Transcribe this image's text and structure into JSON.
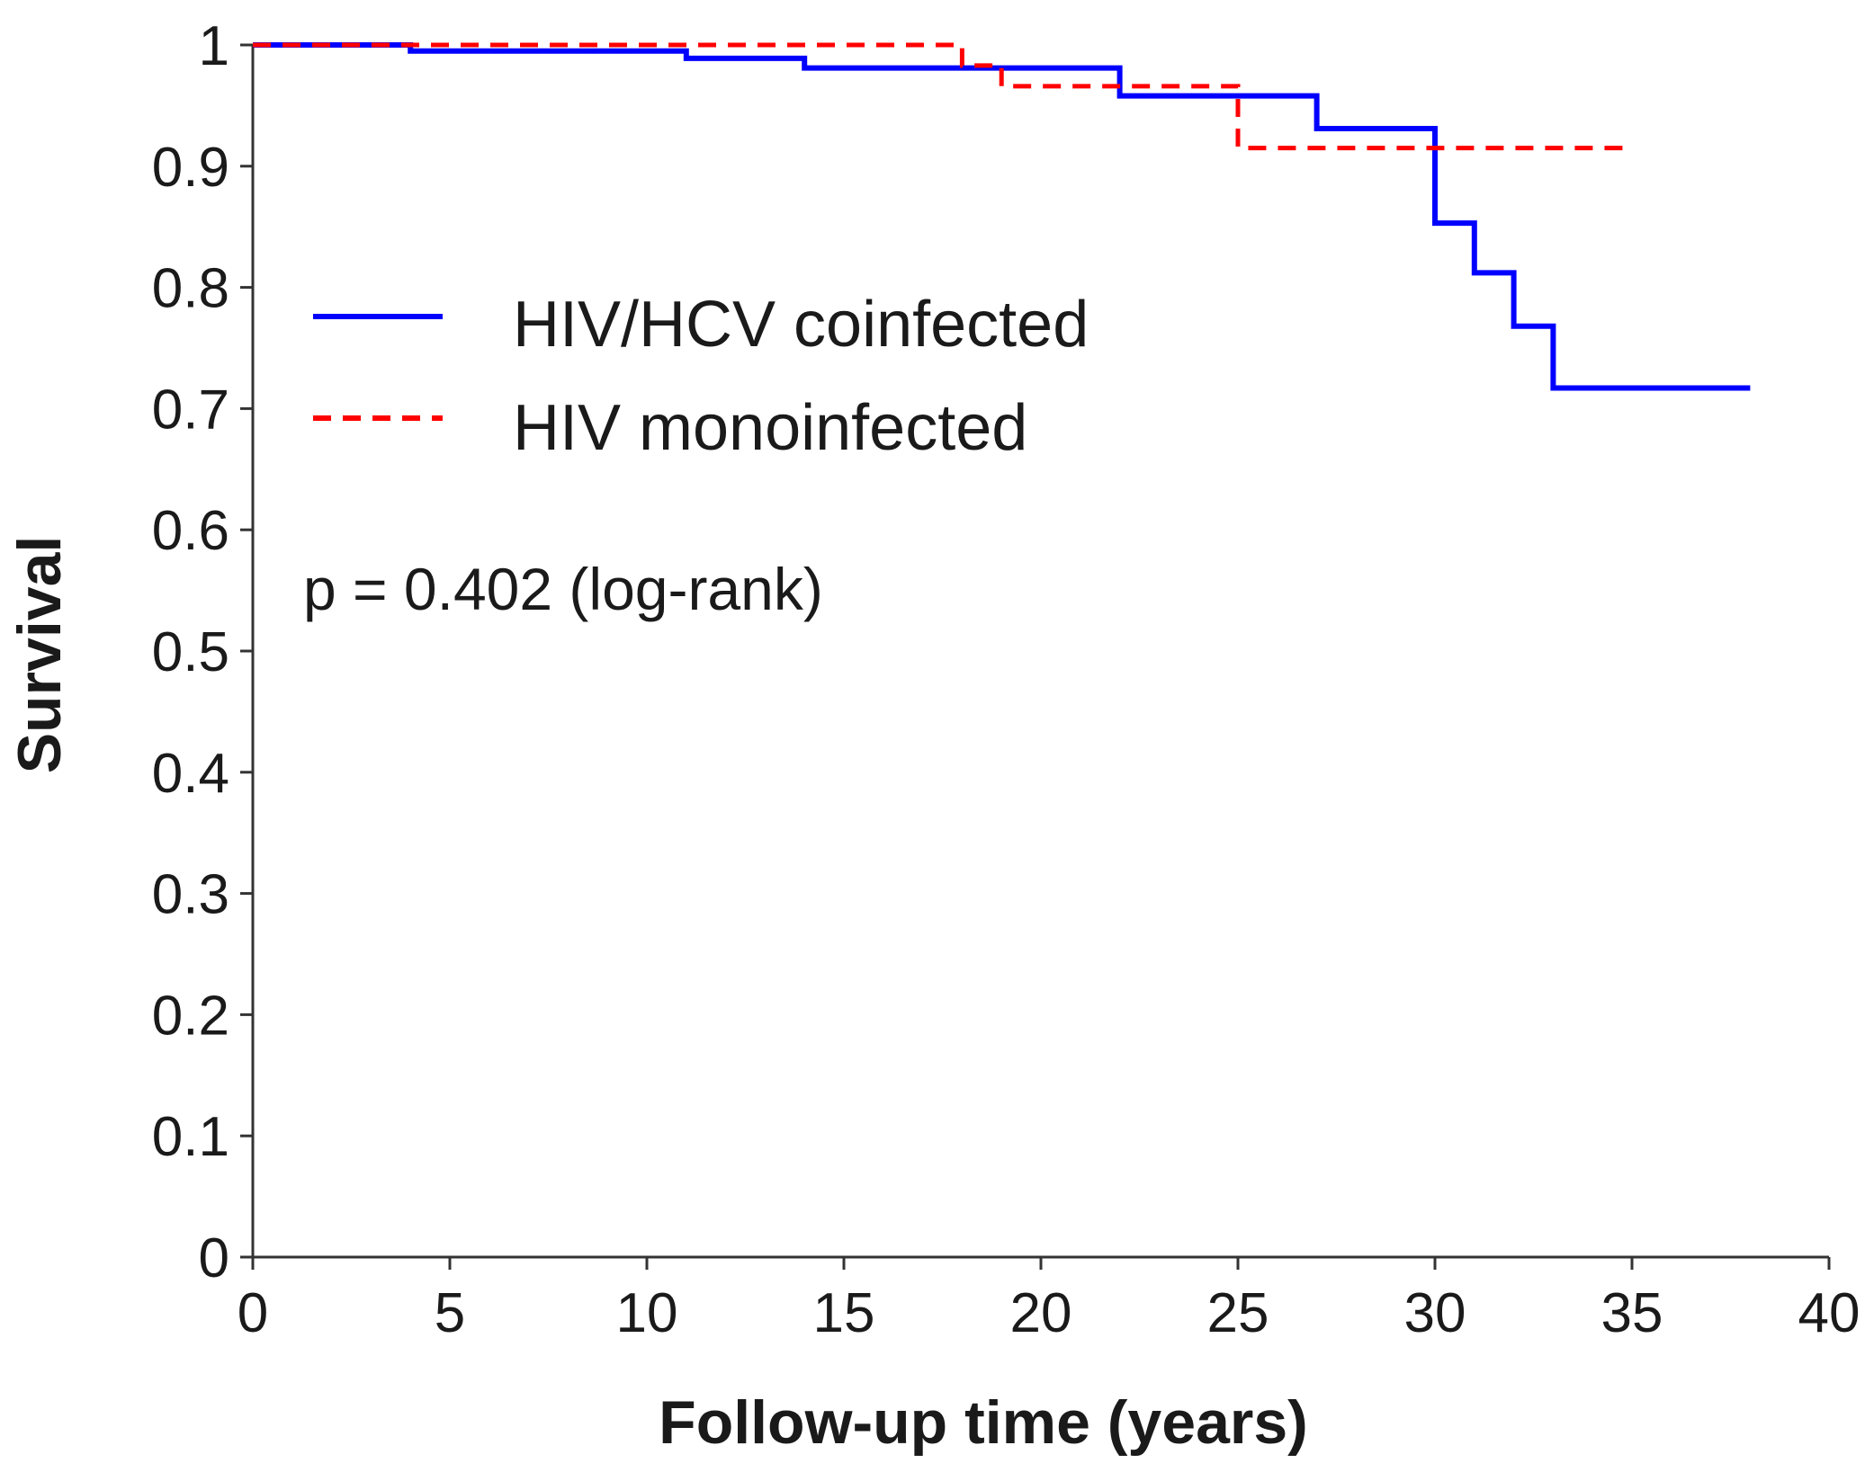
{
  "chart_data": {
    "type": "line",
    "subtype": "kaplan-meier step",
    "title": "",
    "xlabel": "Follow-up time (years)",
    "ylabel": "Survival",
    "xlim": [
      0,
      40
    ],
    "ylim": [
      0,
      1
    ],
    "x_ticks": [
      0,
      5,
      10,
      15,
      20,
      25,
      30,
      35,
      40
    ],
    "y_ticks": [
      0,
      0.1,
      0.2,
      0.3,
      0.4,
      0.5,
      0.6,
      0.7,
      0.8,
      0.9,
      1
    ],
    "x_tick_labels": [
      "0",
      "5",
      "10",
      "15",
      "20",
      "25",
      "30",
      "35",
      "40"
    ],
    "y_tick_labels": [
      "0",
      "0.1",
      "0.2",
      "0.3",
      "0.4",
      "0.5",
      "0.6",
      "0.7",
      "0.8",
      "0.9",
      "1"
    ],
    "grid": false,
    "legend_position": "upper-left",
    "series": [
      {
        "name": "HIV/HCV coinfected",
        "color": "#0000ff",
        "line_style": "solid",
        "x": [
          0,
          4,
          11,
          14,
          22,
          27,
          30,
          31,
          32,
          33,
          38
        ],
        "y": [
          1.0,
          0.995,
          0.989,
          0.981,
          0.958,
          0.931,
          0.853,
          0.812,
          0.768,
          0.717,
          0.717
        ]
      },
      {
        "name": "HIV monoinfected",
        "color": "#ff0000",
        "line_style": "dashed",
        "x": [
          0,
          18,
          19,
          25,
          35
        ],
        "y": [
          1.0,
          0.983,
          0.966,
          0.915,
          0.915
        ]
      }
    ],
    "annotations": [
      {
        "text": "p = 0.402 (log-rank)"
      }
    ]
  }
}
